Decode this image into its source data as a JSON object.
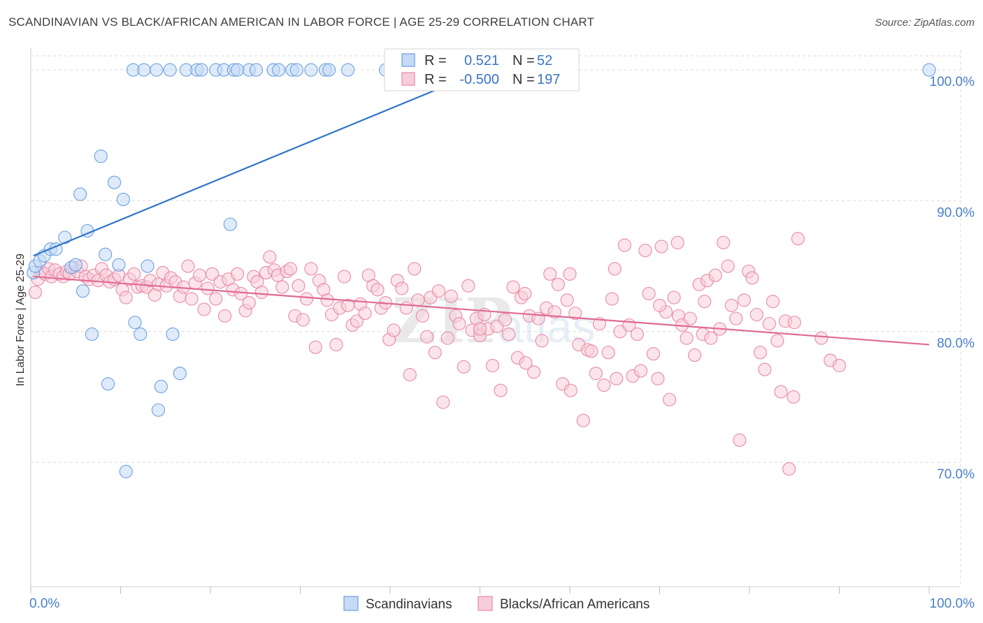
{
  "title": "SCANDINAVIAN VS BLACK/AFRICAN AMERICAN IN LABOR FORCE | AGE 25-29 CORRELATION CHART",
  "source": "Source: ZipAtlas.com",
  "colors": {
    "blue": "#6a9fe0",
    "blue_fill": "#c5daf5",
    "blue_line": "#2f74c8",
    "pink": "#e88aa8",
    "pink_fill": "#f7cdd9",
    "pink_line": "#e06a93",
    "tick_label": "#4a7fcb",
    "grid": "#d9d9d9"
  },
  "legend": {
    "row1": {
      "r_label": "R =",
      "r_value": "0.521",
      "n_label": "N =",
      "n_value": "52"
    },
    "row2": {
      "r_label": "R =",
      "r_value": "-0.500",
      "n_label": "N =",
      "n_value": "197"
    }
  },
  "bottom_legend": {
    "series1": "Scandinavians",
    "series2": "Blacks/African Americans"
  },
  "watermark": "ZIPatlas",
  "chart_data": {
    "type": "scatter",
    "title": "SCANDINAVIAN VS BLACK/AFRICAN AMERICAN IN LABOR FORCE | AGE 25-29 CORRELATION CHART",
    "xlabel": "",
    "ylabel": "In Labor Force | Age 25-29",
    "xlim": [
      0,
      100
    ],
    "ylim": [
      60.5,
      101.5
    ],
    "x_tick_labels": [
      "0.0%",
      "100.0%"
    ],
    "y_ticks": [
      100,
      90,
      80,
      70
    ],
    "y_tick_labels": [
      "100.0%",
      "90.0%",
      "80.0%",
      "70.0%"
    ],
    "grid": true,
    "legend_position": "top-center",
    "series": [
      {
        "name": "Scandinavians",
        "color": "#6a9fe0",
        "trend": {
          "x": [
            0.3,
            50.5
          ],
          "y": [
            85.8,
            100.0
          ]
        },
        "points": [
          [
            0.3,
            84.5
          ],
          [
            0.5,
            85.0
          ],
          [
            1.0,
            85.4
          ],
          [
            1.5,
            85.8
          ],
          [
            2.2,
            86.3
          ],
          [
            2.8,
            86.3
          ],
          [
            3.8,
            87.2
          ],
          [
            4.5,
            84.9
          ],
          [
            5.0,
            85.1
          ],
          [
            5.5,
            90.5
          ],
          [
            5.8,
            83.1
          ],
          [
            6.3,
            87.7
          ],
          [
            6.8,
            79.8
          ],
          [
            7.8,
            93.4
          ],
          [
            8.3,
            85.9
          ],
          [
            8.6,
            76.0
          ],
          [
            9.3,
            91.4
          ],
          [
            9.8,
            85.1
          ],
          [
            10.3,
            90.1
          ],
          [
            10.6,
            69.3
          ],
          [
            11.6,
            80.7
          ],
          [
            12.2,
            79.8
          ],
          [
            13.0,
            85.0
          ],
          [
            14.2,
            74.0
          ],
          [
            14.5,
            75.8
          ],
          [
            15.8,
            79.8
          ],
          [
            16.6,
            76.8
          ],
          [
            22.2,
            88.2
          ],
          [
            11.4,
            100
          ],
          [
            12.6,
            100
          ],
          [
            14.0,
            100
          ],
          [
            15.5,
            100
          ],
          [
            17.3,
            100
          ],
          [
            18.5,
            100
          ],
          [
            19.0,
            100
          ],
          [
            20.6,
            100
          ],
          [
            21.5,
            100
          ],
          [
            22.6,
            100
          ],
          [
            23.0,
            100
          ],
          [
            24.3,
            100
          ],
          [
            25.1,
            100
          ],
          [
            27.0,
            100
          ],
          [
            27.6,
            100
          ],
          [
            29.1,
            100
          ],
          [
            29.6,
            100
          ],
          [
            31.2,
            100
          ],
          [
            32.8,
            100
          ],
          [
            33.2,
            100
          ],
          [
            35.3,
            100
          ],
          [
            39.5,
            100
          ],
          [
            50.5,
            100
          ],
          [
            100,
            100
          ]
        ]
      },
      {
        "name": "Blacks/African Americans",
        "color": "#e88aa8",
        "trend": {
          "x": [
            0.3,
            100
          ],
          "y": [
            84.2,
            79.0
          ]
        },
        "points": [
          [
            0.5,
            83.0
          ],
          [
            0.8,
            84.0
          ],
          [
            1.2,
            84.6
          ],
          [
            1.6,
            84.4
          ],
          [
            2.0,
            84.8
          ],
          [
            2.3,
            84.2
          ],
          [
            2.7,
            84.7
          ],
          [
            3.2,
            84.4
          ],
          [
            3.6,
            84.2
          ],
          [
            4.0,
            84.6
          ],
          [
            4.3,
            84.4
          ],
          [
            4.8,
            84.9
          ],
          [
            5.2,
            84.6
          ],
          [
            5.6,
            85.0
          ],
          [
            6.1,
            84.2
          ],
          [
            6.5,
            84.0
          ],
          [
            7.0,
            84.3
          ],
          [
            7.5,
            83.9
          ],
          [
            7.9,
            84.8
          ],
          [
            8.4,
            84.3
          ],
          [
            8.8,
            83.8
          ],
          [
            9.3,
            84.0
          ],
          [
            9.8,
            84.3
          ],
          [
            10.2,
            83.2
          ],
          [
            10.6,
            82.6
          ],
          [
            11.0,
            84.0
          ],
          [
            11.5,
            84.4
          ],
          [
            11.9,
            83.4
          ],
          [
            12.4,
            83.5
          ],
          [
            12.9,
            83.4
          ],
          [
            13.3,
            83.9
          ],
          [
            13.8,
            82.8
          ],
          [
            14.2,
            83.6
          ],
          [
            14.7,
            84.5
          ],
          [
            15.1,
            83.5
          ],
          [
            15.6,
            84.1
          ],
          [
            16.1,
            83.8
          ],
          [
            16.6,
            82.7
          ],
          [
            17.0,
            83.4
          ],
          [
            17.5,
            85.0
          ],
          [
            17.9,
            82.5
          ],
          [
            18.3,
            83.7
          ],
          [
            18.8,
            84.3
          ],
          [
            19.3,
            81.7
          ],
          [
            19.7,
            83.3
          ],
          [
            20.2,
            84.4
          ],
          [
            20.6,
            82.5
          ],
          [
            21.1,
            83.8
          ],
          [
            21.6,
            81.2
          ],
          [
            22.0,
            84.0
          ],
          [
            22.5,
            83.2
          ],
          [
            23.0,
            84.4
          ],
          [
            23.4,
            82.9
          ],
          [
            23.9,
            81.6
          ],
          [
            24.3,
            82.2
          ],
          [
            24.8,
            84.2
          ],
          [
            25.2,
            83.8
          ],
          [
            25.7,
            83.0
          ],
          [
            26.2,
            84.5
          ],
          [
            26.6,
            85.7
          ],
          [
            27.1,
            84.7
          ],
          [
            27.5,
            84.3
          ],
          [
            28.0,
            83.4
          ],
          [
            28.5,
            84.6
          ],
          [
            28.9,
            84.8
          ],
          [
            29.4,
            81.2
          ],
          [
            29.8,
            83.5
          ],
          [
            30.3,
            80.9
          ],
          [
            30.7,
            82.5
          ],
          [
            31.2,
            84.8
          ],
          [
            31.7,
            78.8
          ],
          [
            32.1,
            83.9
          ],
          [
            32.6,
            83.2
          ],
          [
            33.0,
            82.4
          ],
          [
            33.5,
            81.3
          ],
          [
            34.0,
            79.0
          ],
          [
            34.4,
            81.8
          ],
          [
            34.9,
            84.2
          ],
          [
            35.3,
            82.0
          ],
          [
            35.8,
            80.5
          ],
          [
            36.3,
            80.8
          ],
          [
            36.7,
            82.1
          ],
          [
            37.2,
            81.4
          ],
          [
            37.6,
            84.3
          ],
          [
            38.1,
            83.5
          ],
          [
            38.6,
            83.2
          ],
          [
            39.0,
            81.8
          ],
          [
            39.5,
            82.2
          ],
          [
            39.9,
            79.4
          ],
          [
            40.4,
            80.1
          ],
          [
            40.8,
            83.9
          ],
          [
            41.3,
            83.3
          ],
          [
            41.8,
            81.8
          ],
          [
            42.2,
            76.7
          ],
          [
            42.7,
            84.8
          ],
          [
            43.1,
            82.4
          ],
          [
            43.6,
            81.2
          ],
          [
            44.1,
            79.6
          ],
          [
            44.5,
            82.6
          ],
          [
            45.0,
            78.4
          ],
          [
            45.4,
            83.1
          ],
          [
            45.9,
            74.6
          ],
          [
            46.4,
            79.5
          ],
          [
            46.8,
            82.7
          ],
          [
            47.3,
            81.2
          ],
          [
            47.7,
            80.6
          ],
          [
            48.2,
            77.3
          ],
          [
            48.7,
            83.5
          ],
          [
            49.1,
            80.1
          ],
          [
            49.6,
            81.0
          ],
          [
            50.0,
            79.7
          ],
          [
            50.5,
            81.3
          ],
          [
            50.9,
            80.2
          ],
          [
            51.4,
            77.4
          ],
          [
            51.9,
            80.4
          ],
          [
            52.3,
            75.5
          ],
          [
            52.8,
            80.9
          ],
          [
            53.2,
            79.8
          ],
          [
            53.7,
            83.4
          ],
          [
            54.2,
            78.0
          ],
          [
            54.6,
            82.6
          ],
          [
            55.1,
            77.6
          ],
          [
            55.5,
            81.2
          ],
          [
            56.0,
            76.9
          ],
          [
            56.5,
            81.0
          ],
          [
            56.9,
            79.3
          ],
          [
            57.4,
            81.8
          ],
          [
            57.8,
            84.4
          ],
          [
            58.3,
            81.5
          ],
          [
            58.7,
            83.6
          ],
          [
            59.2,
            76.0
          ],
          [
            59.7,
            82.4
          ],
          [
            60.1,
            75.5
          ],
          [
            60.6,
            81.4
          ],
          [
            61.0,
            79.0
          ],
          [
            61.5,
            73.2
          ],
          [
            62.0,
            78.6
          ],
          [
            62.4,
            78.5
          ],
          [
            62.9,
            76.8
          ],
          [
            63.3,
            80.6
          ],
          [
            63.8,
            75.9
          ],
          [
            64.3,
            78.4
          ],
          [
            64.7,
            82.5
          ],
          [
            65.2,
            76.4
          ],
          [
            65.6,
            80.0
          ],
          [
            66.1,
            86.6
          ],
          [
            66.6,
            80.5
          ],
          [
            67.0,
            76.6
          ],
          [
            67.5,
            79.8
          ],
          [
            67.9,
            77.0
          ],
          [
            68.4,
            86.2
          ],
          [
            68.8,
            82.9
          ],
          [
            69.3,
            78.3
          ],
          [
            69.8,
            76.4
          ],
          [
            70.2,
            86.5
          ],
          [
            70.7,
            81.5
          ],
          [
            71.1,
            74.8
          ],
          [
            71.6,
            82.6
          ],
          [
            72.1,
            81.2
          ],
          [
            72.5,
            80.5
          ],
          [
            73.0,
            79.5
          ],
          [
            73.4,
            81.0
          ],
          [
            73.9,
            78.2
          ],
          [
            74.4,
            83.6
          ],
          [
            74.8,
            79.8
          ],
          [
            75.3,
            83.9
          ],
          [
            75.7,
            79.5
          ],
          [
            76.2,
            84.3
          ],
          [
            76.7,
            80.2
          ],
          [
            77.1,
            86.8
          ],
          [
            77.6,
            85.0
          ],
          [
            78.0,
            82.0
          ],
          [
            78.5,
            81.0
          ],
          [
            78.9,
            71.7
          ],
          [
            79.4,
            82.4
          ],
          [
            79.9,
            84.6
          ],
          [
            80.3,
            84.1
          ],
          [
            80.8,
            81.3
          ],
          [
            81.2,
            78.4
          ],
          [
            81.7,
            77.1
          ],
          [
            82.2,
            80.6
          ],
          [
            82.6,
            82.3
          ],
          [
            83.1,
            79.3
          ],
          [
            83.5,
            75.4
          ],
          [
            84.0,
            80.8
          ],
          [
            84.4,
            69.5
          ],
          [
            84.9,
            75.0
          ],
          [
            85.4,
            87.1
          ],
          [
            88.0,
            79.5
          ],
          [
            89.0,
            77.8
          ],
          [
            90.0,
            77.4
          ],
          [
            70.0,
            82.0
          ],
          [
            72.0,
            86.8
          ],
          [
            75.0,
            82.3
          ],
          [
            85.0,
            80.7
          ],
          [
            65.0,
            84.8
          ],
          [
            60.0,
            84.4
          ],
          [
            55.0,
            82.9
          ],
          [
            50.0,
            80.2
          ]
        ]
      }
    ]
  }
}
